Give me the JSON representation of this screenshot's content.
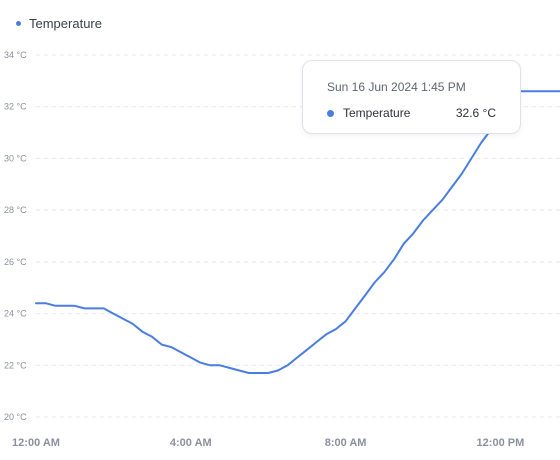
{
  "legend": {
    "label": "Temperature"
  },
  "colors": {
    "series": "#4a7de2",
    "grid": "#e6e8ec",
    "tick": "#8b919c"
  },
  "tooltip": {
    "date": "Sun 16 Jun 2024 1:45 PM",
    "series": "Temperature",
    "value": "32.6 °C"
  },
  "chart_data": {
    "type": "line",
    "title": "",
    "xlabel": "",
    "ylabel": "",
    "ylim": [
      20,
      34
    ],
    "yticks": [
      {
        "value": 20,
        "label": "20 °C"
      },
      {
        "value": 22,
        "label": "22 °C"
      },
      {
        "value": 24,
        "label": "24 °C"
      },
      {
        "value": 26,
        "label": "26 °C"
      },
      {
        "value": 28,
        "label": "28 °C"
      },
      {
        "value": 30,
        "label": "30 °C"
      },
      {
        "value": 32,
        "label": "32 °C"
      },
      {
        "value": 34,
        "label": "34 °C"
      }
    ],
    "xlim": [
      "00:00",
      "14:00"
    ],
    "xticks": [
      {
        "value": "00:00",
        "label": "12:00 AM"
      },
      {
        "value": "04:00",
        "label": "4:00 AM"
      },
      {
        "value": "08:00",
        "label": "8:00 AM"
      },
      {
        "value": "12:00",
        "label": "12:00 PM"
      }
    ],
    "grid": true,
    "legend_position": "top-left",
    "series": [
      {
        "name": "Temperature",
        "x": [
          "00:00",
          "00:15",
          "00:30",
          "00:45",
          "01:00",
          "01:15",
          "01:30",
          "01:45",
          "02:00",
          "02:15",
          "02:30",
          "02:45",
          "03:00",
          "03:15",
          "03:30",
          "03:45",
          "04:00",
          "04:15",
          "04:30",
          "04:45",
          "05:00",
          "05:15",
          "05:30",
          "05:45",
          "06:00",
          "06:15",
          "06:30",
          "06:45",
          "07:00",
          "07:15",
          "07:30",
          "07:45",
          "08:00",
          "08:15",
          "08:30",
          "08:45",
          "09:00",
          "09:15",
          "09:30",
          "09:45",
          "10:00",
          "10:15",
          "10:30",
          "10:45",
          "11:00",
          "11:15",
          "11:30",
          "11:45",
          "12:00",
          "12:15",
          "12:30",
          "12:45",
          "13:00",
          "13:15",
          "13:30",
          "13:45"
        ],
        "y": [
          24.4,
          24.4,
          24.3,
          24.3,
          24.3,
          24.2,
          24.2,
          24.2,
          24.0,
          23.8,
          23.6,
          23.3,
          23.1,
          22.8,
          22.7,
          22.5,
          22.3,
          22.1,
          22.0,
          22.0,
          21.9,
          21.8,
          21.7,
          21.7,
          21.7,
          21.8,
          22.0,
          22.3,
          22.6,
          22.9,
          23.2,
          23.4,
          23.7,
          24.2,
          24.7,
          25.2,
          25.6,
          26.1,
          26.7,
          27.1,
          27.6,
          28.0,
          28.4,
          28.9,
          29.4,
          30.0,
          30.6,
          31.1,
          31.6,
          32.1,
          32.6,
          32.6,
          32.6,
          32.6,
          32.6,
          32.6
        ]
      }
    ],
    "highlight": {
      "x": "13:45",
      "y": 32.6
    }
  }
}
